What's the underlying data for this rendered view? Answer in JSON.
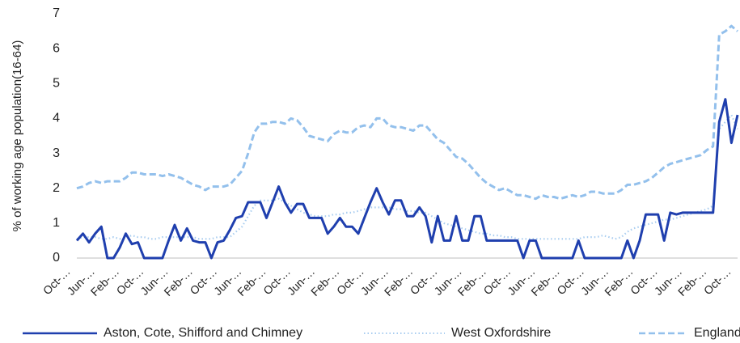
{
  "chart_data": {
    "type": "line",
    "ylabel": "% of working age population(16-64)",
    "ylim": [
      0,
      7
    ],
    "yticks": [
      0,
      1,
      2,
      3,
      4,
      5,
      6,
      7
    ],
    "grid": false,
    "legend": "bottom",
    "categories": [
      "Oct-…",
      null,
      null,
      null,
      "Jun-…",
      null,
      null,
      null,
      "Feb-…",
      null,
      null,
      null,
      "Oct-…",
      null,
      null,
      null,
      "Jun-…",
      null,
      null,
      null,
      "Feb-…",
      null,
      null,
      null,
      "Oct-…",
      null,
      null,
      null,
      "Jun-…",
      null,
      null,
      null,
      "Feb-…",
      null,
      null,
      null,
      "Oct-…",
      null,
      null,
      null,
      "Jun-…",
      null,
      null,
      null,
      "Feb-…",
      null,
      null,
      null,
      "Oct-…",
      null,
      null,
      null,
      "Jun-…",
      null,
      null,
      null,
      "Feb-…",
      null,
      null,
      null,
      "Oct-…",
      null,
      null,
      null,
      "Jun-…",
      null,
      null,
      null,
      "Feb-…",
      null,
      null,
      null,
      "Oct-…",
      null,
      null,
      null,
      "Jun-…",
      null,
      null,
      null,
      "Feb-…",
      null,
      null,
      null,
      "Oct-…",
      null,
      null,
      null,
      "Jun-…",
      null,
      null,
      null,
      "Feb-…",
      null,
      null,
      null,
      "Oct-…",
      null,
      null,
      null,
      "Jun-…",
      null,
      null,
      null,
      "Feb-…",
      null,
      null,
      null,
      "Oct-…"
    ],
    "series": [
      {
        "name": "Aston, Cote, Shifford and Chimney",
        "color": "#1f3fae",
        "style": "solid",
        "values": [
          0.5,
          0.7,
          0.45,
          0.7,
          0.9,
          0,
          0,
          0.3,
          0.7,
          0.4,
          0.45,
          0,
          0,
          0,
          0,
          0.5,
          0.95,
          0.5,
          0.85,
          0.5,
          0.45,
          0.45,
          0,
          0.45,
          0.5,
          0.8,
          1.15,
          1.2,
          1.6,
          1.6,
          1.6,
          1.15,
          1.6,
          2.05,
          1.6,
          1.3,
          1.55,
          1.55,
          1.15,
          1.15,
          1.15,
          0.7,
          0.9,
          1.15,
          0.9,
          0.9,
          0.7,
          1.15,
          1.6,
          2.0,
          1.6,
          1.25,
          1.65,
          1.65,
          1.2,
          1.2,
          1.45,
          1.2,
          0.45,
          1.2,
          0.5,
          0.5,
          1.2,
          0.5,
          0.5,
          1.2,
          1.2,
          0.5,
          0.5,
          0.5,
          0.5,
          0.5,
          0.5,
          0,
          0.5,
          0.5,
          0,
          0,
          0,
          0,
          0,
          0,
          0.5,
          0,
          0,
          0,
          0,
          0,
          0,
          0,
          0.5,
          0,
          0.5,
          1.25,
          1.25,
          1.25,
          0.5,
          1.3,
          1.25,
          1.3,
          1.3,
          1.3,
          1.3,
          1.3,
          1.3,
          3.9,
          4.55,
          3.3,
          4.1
        ]
      },
      {
        "name": "West Oxfordshire",
        "color": "#a9cdf0",
        "style": "dotted",
        "values": [
          0.55,
          0.6,
          0.6,
          0.6,
          0.55,
          0.55,
          0.6,
          0.55,
          0.6,
          0.65,
          0.6,
          0.6,
          0.55,
          0.55,
          0.6,
          0.6,
          0.6,
          0.6,
          0.6,
          0.6,
          0.55,
          0.55,
          0.55,
          0.6,
          0.6,
          0.6,
          0.75,
          0.9,
          1.2,
          1.5,
          1.65,
          1.65,
          1.65,
          1.7,
          1.6,
          1.5,
          1.4,
          1.3,
          1.25,
          1.2,
          1.2,
          1.2,
          1.25,
          1.25,
          1.3,
          1.3,
          1.35,
          1.4,
          1.45,
          1.45,
          1.45,
          1.45,
          1.4,
          1.4,
          1.35,
          1.35,
          1.3,
          1.3,
          1.2,
          1.1,
          1.0,
          0.95,
          0.9,
          0.85,
          0.8,
          0.75,
          0.7,
          0.7,
          0.65,
          0.65,
          0.6,
          0.6,
          0.55,
          0.55,
          0.55,
          0.55,
          0.55,
          0.55,
          0.55,
          0.55,
          0.55,
          0.55,
          0.55,
          0.6,
          0.6,
          0.6,
          0.65,
          0.6,
          0.55,
          0.6,
          0.75,
          0.85,
          0.9,
          0.95,
          1.0,
          1.05,
          1.1,
          1.1,
          1.15,
          1.2,
          1.25,
          1.3,
          1.35,
          1.4,
          1.5,
          3.7,
          3.9,
          4.1,
          3.7
        ]
      },
      {
        "name": "England",
        "color": "#93c0ec",
        "style": "dashed",
        "values": [
          2.0,
          2.05,
          2.15,
          2.2,
          2.15,
          2.2,
          2.2,
          2.2,
          2.3,
          2.45,
          2.45,
          2.4,
          2.4,
          2.4,
          2.35,
          2.4,
          2.35,
          2.3,
          2.2,
          2.1,
          2.05,
          1.95,
          2.05,
          2.05,
          2.05,
          2.1,
          2.3,
          2.5,
          3.0,
          3.6,
          3.85,
          3.85,
          3.9,
          3.9,
          3.85,
          4.0,
          3.95,
          3.75,
          3.5,
          3.45,
          3.4,
          3.35,
          3.55,
          3.65,
          3.6,
          3.6,
          3.75,
          3.8,
          3.75,
          4.0,
          4.0,
          3.8,
          3.75,
          3.75,
          3.7,
          3.65,
          3.8,
          3.8,
          3.6,
          3.4,
          3.3,
          3.1,
          2.9,
          2.85,
          2.7,
          2.5,
          2.3,
          2.15,
          2.05,
          1.95,
          2.0,
          1.9,
          1.8,
          1.8,
          1.75,
          1.7,
          1.8,
          1.75,
          1.75,
          1.7,
          1.75,
          1.8,
          1.75,
          1.8,
          1.9,
          1.9,
          1.85,
          1.85,
          1.85,
          1.95,
          2.1,
          2.1,
          2.15,
          2.2,
          2.3,
          2.45,
          2.6,
          2.7,
          2.75,
          2.8,
          2.85,
          2.9,
          2.95,
          3.1,
          3.2,
          6.4,
          6.5,
          6.65,
          6.5
        ]
      }
    ]
  }
}
